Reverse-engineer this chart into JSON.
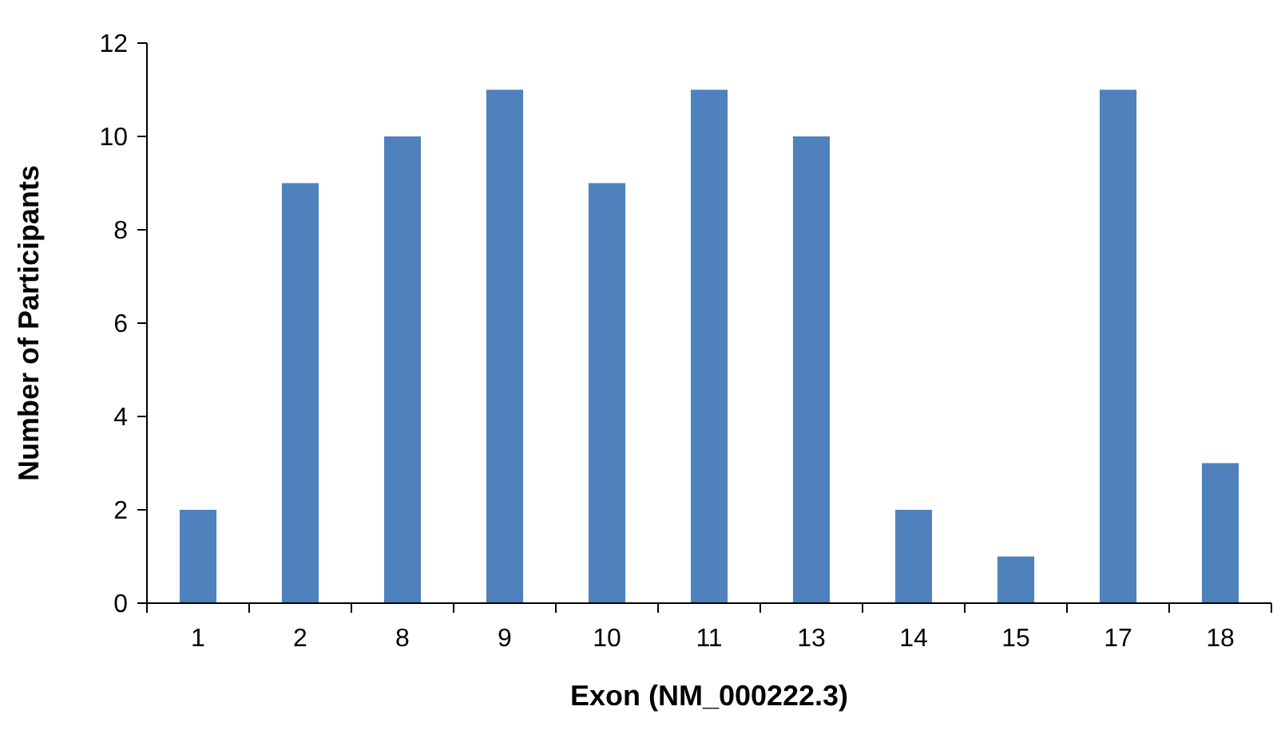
{
  "chart_data": {
    "type": "bar",
    "xlabel": "Exon (NM_000222.3)",
    "ylabel": "Number of Participants",
    "categories": [
      "1",
      "2",
      "8",
      "9",
      "10",
      "11",
      "13",
      "14",
      "15",
      "17",
      "18"
    ],
    "values": [
      2,
      9,
      10,
      11,
      9,
      11,
      10,
      2,
      1,
      11,
      3
    ],
    "color": "#4f81bd",
    "ylim": [
      0,
      12
    ],
    "yticks": [
      0,
      2,
      4,
      6,
      8,
      10,
      12
    ],
    "grid": false
  }
}
